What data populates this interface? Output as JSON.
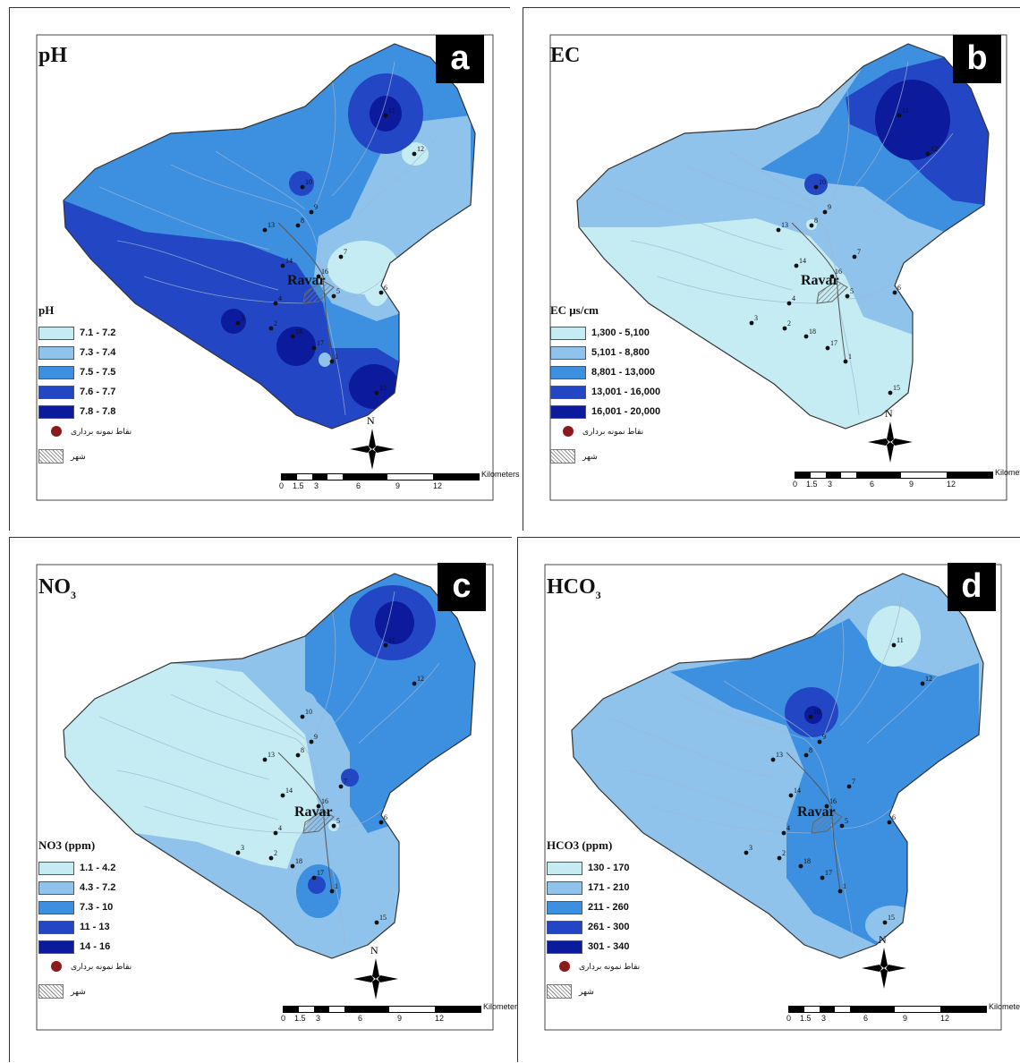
{
  "panels": [
    {
      "letter": "a",
      "title": "pH",
      "title_sub": "",
      "legend_title": "pH",
      "classes": [
        {
          "label": "7.1 - 7.2",
          "color": "#c4ecf2"
        },
        {
          "label": "7.3 - 7.4",
          "color": "#8fc3ec"
        },
        {
          "label": "7.5 - 7.5",
          "color": "#3d8fe0"
        },
        {
          "label": "7.6 - 7.7",
          "color": "#2347c4"
        },
        {
          "label": "7.8 - 7.8",
          "color": "#0c1a9c"
        }
      ]
    },
    {
      "letter": "b",
      "title": "EC",
      "title_sub": "",
      "legend_title": "EC μs/cm",
      "classes": [
        {
          "label": "1,300 - 5,100",
          "color": "#c4ecf2"
        },
        {
          "label": "5,101 - 8,800",
          "color": "#8fc3ec"
        },
        {
          "label": "8,801 - 13,000",
          "color": "#3d8fe0"
        },
        {
          "label": "13,001 - 16,000",
          "color": "#2347c4"
        },
        {
          "label": "16,001 - 20,000",
          "color": "#0c1a9c"
        }
      ]
    },
    {
      "letter": "c",
      "title": "NO",
      "title_sub": "3",
      "legend_title": "NO3 (ppm)",
      "classes": [
        {
          "label": "1.1 - 4.2",
          "color": "#c4ecf2"
        },
        {
          "label": "4.3 - 7.2",
          "color": "#8fc3ec"
        },
        {
          "label": "7.3 - 10",
          "color": "#3d8fe0"
        },
        {
          "label": "11 - 13",
          "color": "#2347c4"
        },
        {
          "label": "14 - 16",
          "color": "#0c1a9c"
        }
      ]
    },
    {
      "letter": "d",
      "title": "HCO",
      "title_sub": "3",
      "legend_title": "HCO3 (ppm)",
      "classes": [
        {
          "label": "130 - 170",
          "color": "#c4ecf2"
        },
        {
          "label": "171 - 210",
          "color": "#8fc3ec"
        },
        {
          "label": "211 - 260",
          "color": "#3d8fe0"
        },
        {
          "label": "261 - 300",
          "color": "#2347c4"
        },
        {
          "label": "301 - 340",
          "color": "#0c1a9c"
        }
      ]
    }
  ],
  "legend_common": {
    "sample_points": "نقاط نمونه برداری",
    "city": "شهر"
  },
  "city_name": "Ravar",
  "north_label": "N",
  "scale": {
    "ticks": [
      "0",
      "1.5",
      "3",
      "6",
      "9",
      "12"
    ],
    "unit": "Kilometers"
  },
  "sites": [
    "1",
    "2",
    "3",
    "4",
    "5",
    "6",
    "7",
    "8",
    "9",
    "10",
    "11",
    "12",
    "13",
    "14",
    "15",
    "16",
    "17",
    "18"
  ]
}
